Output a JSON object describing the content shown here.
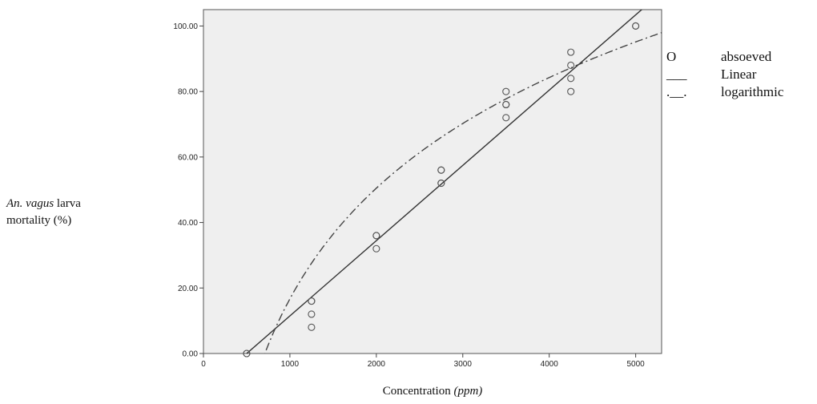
{
  "chart_data": {
    "type": "scatter",
    "xlabel_prefix": "Concentration ",
    "xlabel_unit": "(ppm)",
    "ylabel_species": "An. vagus",
    "ylabel_line1_rest": " larva",
    "ylabel_line2": "mortality (%)",
    "xlim": [
      0,
      5300
    ],
    "ylim": [
      0,
      105
    ],
    "xticks": [
      0,
      1000,
      2000,
      3000,
      4000,
      5000
    ],
    "xtick_labels": [
      "0",
      "1000",
      "2000",
      "3000",
      "4000",
      "5000"
    ],
    "yticks": [
      0,
      20,
      40,
      60,
      80,
      100
    ],
    "ytick_labels": [
      "0.00",
      "20.00",
      "40.00",
      "60.00",
      "80.00",
      "100.00"
    ],
    "observed": [
      {
        "x": 500,
        "y": 0
      },
      {
        "x": 500,
        "y": 0
      },
      {
        "x": 1250,
        "y": 16
      },
      {
        "x": 1250,
        "y": 16
      },
      {
        "x": 1250,
        "y": 12
      },
      {
        "x": 1250,
        "y": 8
      },
      {
        "x": 2000,
        "y": 36
      },
      {
        "x": 2000,
        "y": 36
      },
      {
        "x": 2000,
        "y": 32
      },
      {
        "x": 2750,
        "y": 56
      },
      {
        "x": 2750,
        "y": 56
      },
      {
        "x": 2750,
        "y": 52
      },
      {
        "x": 2750,
        "y": 52
      },
      {
        "x": 3500,
        "y": 80
      },
      {
        "x": 3500,
        "y": 76
      },
      {
        "x": 3500,
        "y": 76
      },
      {
        "x": 3500,
        "y": 72
      },
      {
        "x": 4250,
        "y": 92
      },
      {
        "x": 4250,
        "y": 88
      },
      {
        "x": 4250,
        "y": 84
      },
      {
        "x": 4250,
        "y": 80
      },
      {
        "x": 5000,
        "y": 100
      },
      {
        "x": 5000,
        "y": 100
      }
    ],
    "linear_fit": {
      "slope": 0.02298,
      "intercept": -11.5
    },
    "log_fit": {
      "a": 48.74,
      "b": -320.0
    },
    "legend": [
      {
        "symbol": "O",
        "label": "absoeved"
      },
      {
        "symbol": "___",
        "label": "Linear"
      },
      {
        "symbol": ".__.",
        "label": "logarithmic"
      }
    ],
    "grid": false,
    "legend_position": "right"
  }
}
